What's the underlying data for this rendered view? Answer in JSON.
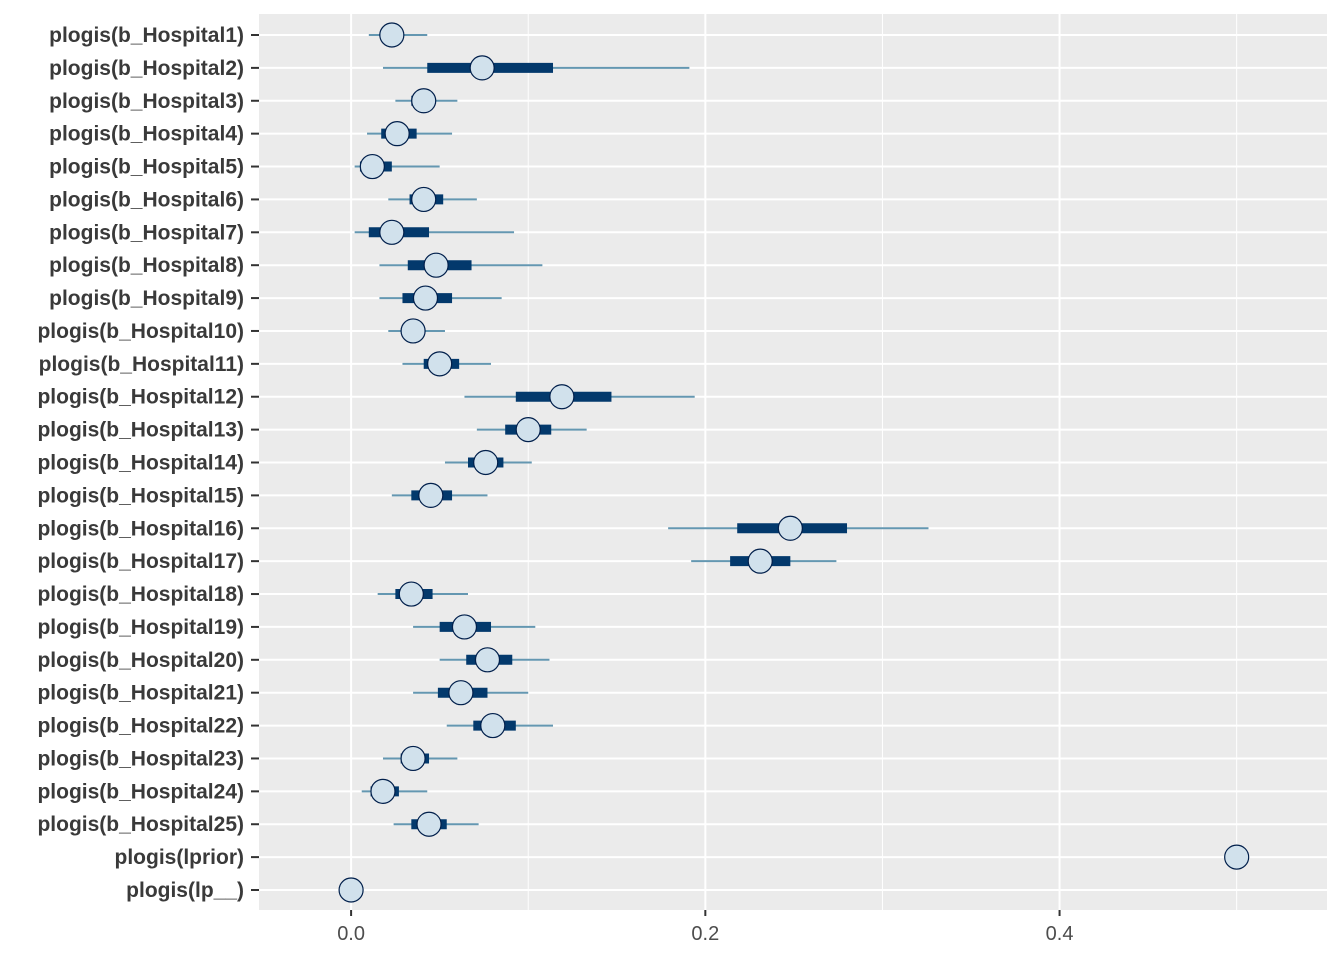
{
  "chart_data": {
    "type": "interval",
    "xlim": [
      -0.052,
      0.551
    ],
    "x_ticks": [
      0.0,
      0.2,
      0.4
    ],
    "x_tick_labels": [
      "0.0",
      "0.2",
      "0.4"
    ],
    "grid": true,
    "colors": {
      "panel_bg": "#ebebeb",
      "grid": "#ffffff",
      "thin_line": "#6497b1",
      "thick_line": "#03396c",
      "point_fill": "#d1e1ec",
      "point_stroke": "#011f4b"
    },
    "rows": [
      {
        "label": "plogis(b_Hospital1)",
        "outer": [
          0.01,
          0.043
        ],
        "inner": [
          0.018,
          0.026
        ],
        "point": 0.023
      },
      {
        "label": "plogis(b_Hospital2)",
        "outer": [
          0.018,
          0.191
        ],
        "inner": [
          0.043,
          0.114
        ],
        "point": 0.074
      },
      {
        "label": "plogis(b_Hospital3)",
        "outer": [
          0.025,
          0.06
        ],
        "inner": [
          0.034,
          0.047
        ],
        "point": 0.041
      },
      {
        "label": "plogis(b_Hospital4)",
        "outer": [
          0.009,
          0.057
        ],
        "inner": [
          0.017,
          0.037
        ],
        "point": 0.026
      },
      {
        "label": "plogis(b_Hospital5)",
        "outer": [
          0.002,
          0.05
        ],
        "inner": [
          0.005,
          0.023
        ],
        "point": 0.012
      },
      {
        "label": "plogis(b_Hospital6)",
        "outer": [
          0.021,
          0.071
        ],
        "inner": [
          0.033,
          0.052
        ],
        "point": 0.041
      },
      {
        "label": "plogis(b_Hospital7)",
        "outer": [
          0.002,
          0.092
        ],
        "inner": [
          0.01,
          0.044
        ],
        "point": 0.023
      },
      {
        "label": "plogis(b_Hospital8)",
        "outer": [
          0.016,
          0.108
        ],
        "inner": [
          0.032,
          0.068
        ],
        "point": 0.048
      },
      {
        "label": "plogis(b_Hospital9)",
        "outer": [
          0.016,
          0.085
        ],
        "inner": [
          0.029,
          0.057
        ],
        "point": 0.042
      },
      {
        "label": "plogis(b_Hospital10)",
        "outer": [
          0.021,
          0.053
        ],
        "inner": [
          0.029,
          0.04
        ],
        "point": 0.035
      },
      {
        "label": "plogis(b_Hospital11)",
        "outer": [
          0.029,
          0.079
        ],
        "inner": [
          0.041,
          0.061
        ],
        "point": 0.05
      },
      {
        "label": "plogis(b_Hospital12)",
        "outer": [
          0.064,
          0.194
        ],
        "inner": [
          0.093,
          0.147
        ],
        "point": 0.119
      },
      {
        "label": "plogis(b_Hospital13)",
        "outer": [
          0.071,
          0.133
        ],
        "inner": [
          0.087,
          0.113
        ],
        "point": 0.1
      },
      {
        "label": "plogis(b_Hospital14)",
        "outer": [
          0.053,
          0.102
        ],
        "inner": [
          0.066,
          0.086
        ],
        "point": 0.076
      },
      {
        "label": "plogis(b_Hospital15)",
        "outer": [
          0.023,
          0.077
        ],
        "inner": [
          0.034,
          0.057
        ],
        "point": 0.045
      },
      {
        "label": "plogis(b_Hospital16)",
        "outer": [
          0.179,
          0.326
        ],
        "inner": [
          0.218,
          0.28
        ],
        "point": 0.248
      },
      {
        "label": "plogis(b_Hospital17)",
        "outer": [
          0.192,
          0.274
        ],
        "inner": [
          0.214,
          0.248
        ],
        "point": 0.231
      },
      {
        "label": "plogis(b_Hospital18)",
        "outer": [
          0.015,
          0.066
        ],
        "inner": [
          0.025,
          0.046
        ],
        "point": 0.034
      },
      {
        "label": "plogis(b_Hospital19)",
        "outer": [
          0.035,
          0.104
        ],
        "inner": [
          0.05,
          0.079
        ],
        "point": 0.064
      },
      {
        "label": "plogis(b_Hospital20)",
        "outer": [
          0.05,
          0.112
        ],
        "inner": [
          0.065,
          0.091
        ],
        "point": 0.077
      },
      {
        "label": "plogis(b_Hospital21)",
        "outer": [
          0.035,
          0.1
        ],
        "inner": [
          0.049,
          0.077
        ],
        "point": 0.062
      },
      {
        "label": "plogis(b_Hospital22)",
        "outer": [
          0.054,
          0.114
        ],
        "inner": [
          0.069,
          0.093
        ],
        "point": 0.08
      },
      {
        "label": "plogis(b_Hospital23)",
        "outer": [
          0.018,
          0.06
        ],
        "inner": [
          0.028,
          0.044
        ],
        "point": 0.035
      },
      {
        "label": "plogis(b_Hospital24)",
        "outer": [
          0.006,
          0.043
        ],
        "inner": [
          0.011,
          0.027
        ],
        "point": 0.018
      },
      {
        "label": "plogis(b_Hospital25)",
        "outer": [
          0.024,
          0.072
        ],
        "inner": [
          0.034,
          0.054
        ],
        "point": 0.044
      },
      {
        "label": "plogis(lprior)",
        "outer": [
          0.5,
          0.5
        ],
        "inner": [
          0.5,
          0.5
        ],
        "point": 0.5
      },
      {
        "label": "plogis(lp__)",
        "outer": [
          0.0,
          0.0
        ],
        "inner": [
          0.0,
          0.0
        ],
        "point": 0.0
      }
    ]
  }
}
